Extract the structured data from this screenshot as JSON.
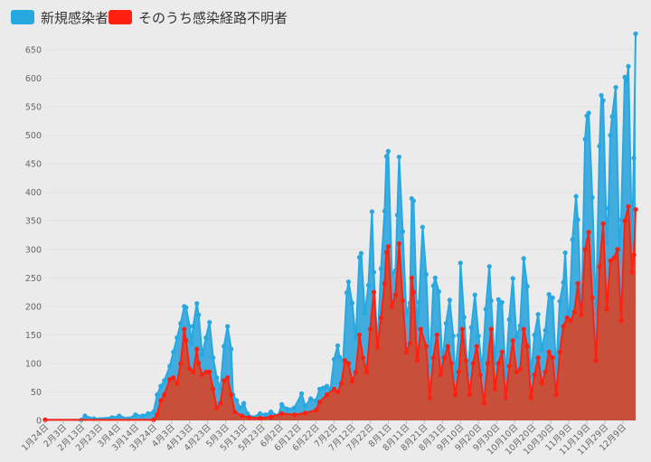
{
  "colors": {
    "series_total": "#27a8e0",
    "series_total_fill": "#3aa9dd",
    "series_unknown": "#ff2010",
    "series_unknown_fill": "#c8503a",
    "background": "#ebebeb"
  },
  "chart_data": {
    "type": "area",
    "title": "",
    "xlabel": "",
    "ylabel": "",
    "ylim": [
      0,
      650
    ],
    "yticks": [
      0,
      50,
      100,
      150,
      200,
      250,
      300,
      350,
      400,
      450,
      500,
      550,
      600,
      650
    ],
    "grid": true,
    "legend_position": "top-left",
    "x_start": "2020-01-24",
    "x_end": "2020-12-16",
    "x_tick_labels": [
      "1月24日",
      "2月3日",
      "2月13日",
      "2月23日",
      "3月4日",
      "3月14日",
      "3月24日",
      "4月3日",
      "4月13日",
      "4月23日",
      "5月3日",
      "5月13日",
      "5月23日",
      "6月2日",
      "6月12日",
      "6月22日",
      "7月2日",
      "7月12日",
      "7月22日",
      "8月1日",
      "8月11日",
      "8月21日",
      "8月31日",
      "9月10日",
      "9月20日",
      "9月30日",
      "10月10日",
      "10月20日",
      "10月30日",
      "11月9日",
      "11月19日",
      "11月29日",
      "12月9日"
    ],
    "series": [
      {
        "name": "新規感染者",
        "points": [
          [
            "2020-01-24",
            1
          ],
          [
            "2020-02-13",
            1
          ],
          [
            "2020-02-15",
            8
          ],
          [
            "2020-02-20",
            3
          ],
          [
            "2020-03-01",
            5
          ],
          [
            "2020-03-05",
            8
          ],
          [
            "2020-03-10",
            3
          ],
          [
            "2020-03-14",
            10
          ],
          [
            "2020-03-18",
            8
          ],
          [
            "2020-03-21",
            12
          ],
          [
            "2020-03-24",
            15
          ],
          [
            "2020-03-26",
            45
          ],
          [
            "2020-03-28",
            60
          ],
          [
            "2020-03-30",
            70
          ],
          [
            "2020-04-02",
            95
          ],
          [
            "2020-04-04",
            120
          ],
          [
            "2020-04-06",
            145
          ],
          [
            "2020-04-08",
            170
          ],
          [
            "2020-04-10",
            200
          ],
          [
            "2020-04-11",
            198
          ],
          [
            "2020-04-13",
            165
          ],
          [
            "2020-04-14",
            135
          ],
          [
            "2020-04-15",
            165
          ],
          [
            "2020-04-17",
            205
          ],
          [
            "2020-04-18",
            185
          ],
          [
            "2020-04-20",
            115
          ],
          [
            "2020-04-22",
            145
          ],
          [
            "2020-04-24",
            172
          ],
          [
            "2020-04-26",
            110
          ],
          [
            "2020-04-28",
            75
          ],
          [
            "2020-04-30",
            55
          ],
          [
            "2020-05-02",
            130
          ],
          [
            "2020-05-04",
            165
          ],
          [
            "2020-05-06",
            125
          ],
          [
            "2020-05-07",
            45
          ],
          [
            "2020-05-09",
            35
          ],
          [
            "2020-05-11",
            22
          ],
          [
            "2020-05-13",
            30
          ],
          [
            "2020-05-15",
            12
          ],
          [
            "2020-05-18",
            5
          ],
          [
            "2020-05-22",
            12
          ],
          [
            "2020-05-25",
            10
          ],
          [
            "2020-05-28",
            15
          ],
          [
            "2020-06-01",
            8
          ],
          [
            "2020-06-03",
            28
          ],
          [
            "2020-06-06",
            20
          ],
          [
            "2020-06-10",
            22
          ],
          [
            "2020-06-14",
            47
          ],
          [
            "2020-06-16",
            25
          ],
          [
            "2020-06-19",
            38
          ],
          [
            "2020-06-22",
            35
          ],
          [
            "2020-06-24",
            55
          ],
          [
            "2020-06-26",
            57
          ],
          [
            "2020-06-28",
            60
          ],
          [
            "2020-06-30",
            55
          ],
          [
            "2020-07-02",
            107
          ],
          [
            "2020-07-04",
            131
          ],
          [
            "2020-07-05",
            111
          ],
          [
            "2020-07-07",
            105
          ],
          [
            "2020-07-09",
            224
          ],
          [
            "2020-07-10",
            243
          ],
          [
            "2020-07-12",
            206
          ],
          [
            "2020-07-14",
            143
          ],
          [
            "2020-07-16",
            286
          ],
          [
            "2020-07-17",
            293
          ],
          [
            "2020-07-19",
            188
          ],
          [
            "2020-07-21",
            237
          ],
          [
            "2020-07-23",
            366
          ],
          [
            "2020-07-24",
            260
          ],
          [
            "2020-07-26",
            131
          ],
          [
            "2020-07-28",
            266
          ],
          [
            "2020-07-30",
            367
          ],
          [
            "2020-07-31",
            463
          ],
          [
            "2020-08-01",
            472
          ],
          [
            "2020-08-03",
            258
          ],
          [
            "2020-08-05",
            263
          ],
          [
            "2020-08-06",
            360
          ],
          [
            "2020-08-07",
            462
          ],
          [
            "2020-08-09",
            331
          ],
          [
            "2020-08-11",
            188
          ],
          [
            "2020-08-13",
            206
          ],
          [
            "2020-08-14",
            389
          ],
          [
            "2020-08-15",
            385
          ],
          [
            "2020-08-17",
            161
          ],
          [
            "2020-08-18",
            207
          ],
          [
            "2020-08-20",
            339
          ],
          [
            "2020-08-22",
            256
          ],
          [
            "2020-08-24",
            95
          ],
          [
            "2020-08-26",
            236
          ],
          [
            "2020-08-27",
            250
          ],
          [
            "2020-08-29",
            226
          ],
          [
            "2020-08-31",
            100
          ],
          [
            "2020-09-02",
            170
          ],
          [
            "2020-09-04",
            211
          ],
          [
            "2020-09-06",
            148
          ],
          [
            "2020-09-07",
            77
          ],
          [
            "2020-09-09",
            149
          ],
          [
            "2020-09-10",
            276
          ],
          [
            "2020-09-12",
            181
          ],
          [
            "2020-09-14",
            80
          ],
          [
            "2020-09-16",
            163
          ],
          [
            "2020-09-18",
            220
          ],
          [
            "2020-09-20",
            148
          ],
          [
            "2020-09-22",
            88
          ],
          [
            "2020-09-24",
            195
          ],
          [
            "2020-09-26",
            270
          ],
          [
            "2020-09-27",
            210
          ],
          [
            "2020-09-29",
            100
          ],
          [
            "2020-10-01",
            212
          ],
          [
            "2020-10-03",
            207
          ],
          [
            "2020-10-05",
            78
          ],
          [
            "2020-10-07",
            177
          ],
          [
            "2020-10-09",
            249
          ],
          [
            "2020-10-11",
            146
          ],
          [
            "2020-10-13",
            166
          ],
          [
            "2020-10-15",
            284
          ],
          [
            "2020-10-17",
            235
          ],
          [
            "2020-10-19",
            78
          ],
          [
            "2020-10-21",
            150
          ],
          [
            "2020-10-23",
            186
          ],
          [
            "2020-10-25",
            124
          ],
          [
            "2020-10-27",
            158
          ],
          [
            "2020-10-29",
            221
          ],
          [
            "2020-10-31",
            215
          ],
          [
            "2020-11-02",
            87
          ],
          [
            "2020-11-04",
            209
          ],
          [
            "2020-11-06",
            242
          ],
          [
            "2020-11-07",
            294
          ],
          [
            "2020-11-09",
            157
          ],
          [
            "2020-11-11",
            317
          ],
          [
            "2020-11-13",
            393
          ],
          [
            "2020-11-14",
            352
          ],
          [
            "2020-11-16",
            180
          ],
          [
            "2020-11-18",
            493
          ],
          [
            "2020-11-19",
            534
          ],
          [
            "2020-11-20",
            539
          ],
          [
            "2020-11-22",
            391
          ],
          [
            "2020-11-24",
            186
          ],
          [
            "2020-11-26",
            481
          ],
          [
            "2020-11-27",
            570
          ],
          [
            "2020-11-28",
            561
          ],
          [
            "2020-11-30",
            311
          ],
          [
            "2020-12-01",
            372
          ],
          [
            "2020-12-02",
            500
          ],
          [
            "2020-12-03",
            533
          ],
          [
            "2020-12-05",
            584
          ],
          [
            "2020-12-07",
            299
          ],
          [
            "2020-12-08",
            352
          ],
          [
            "2020-12-10",
            602
          ],
          [
            "2020-12-11",
            595
          ],
          [
            "2020-12-12",
            621
          ],
          [
            "2020-12-14",
            305
          ],
          [
            "2020-12-15",
            460
          ],
          [
            "2020-12-16",
            678
          ]
        ]
      },
      {
        "name": "そのうち感染経路不明者",
        "points": [
          [
            "2020-01-24",
            1
          ],
          [
            "2020-03-24",
            1
          ],
          [
            "2020-03-26",
            10
          ],
          [
            "2020-03-28",
            35
          ],
          [
            "2020-03-30",
            45
          ],
          [
            "2020-04-02",
            72
          ],
          [
            "2020-04-04",
            75
          ],
          [
            "2020-04-06",
            65
          ],
          [
            "2020-04-08",
            100
          ],
          [
            "2020-04-10",
            160
          ],
          [
            "2020-04-11",
            140
          ],
          [
            "2020-04-13",
            90
          ],
          [
            "2020-04-15",
            85
          ],
          [
            "2020-04-17",
            125
          ],
          [
            "2020-04-18",
            100
          ],
          [
            "2020-04-20",
            80
          ],
          [
            "2020-04-22",
            85
          ],
          [
            "2020-04-24",
            85
          ],
          [
            "2020-04-26",
            55
          ],
          [
            "2020-04-28",
            22
          ],
          [
            "2020-04-30",
            30
          ],
          [
            "2020-05-02",
            70
          ],
          [
            "2020-05-04",
            75
          ],
          [
            "2020-05-06",
            45
          ],
          [
            "2020-05-08",
            15
          ],
          [
            "2020-05-12",
            8
          ],
          [
            "2020-05-16",
            5
          ],
          [
            "2020-05-22",
            4
          ],
          [
            "2020-05-28",
            6
          ],
          [
            "2020-06-03",
            12
          ],
          [
            "2020-06-10",
            10
          ],
          [
            "2020-06-16",
            13
          ],
          [
            "2020-06-22",
            18
          ],
          [
            "2020-06-24",
            32
          ],
          [
            "2020-06-28",
            45
          ],
          [
            "2020-07-02",
            55
          ],
          [
            "2020-07-04",
            50
          ],
          [
            "2020-07-06",
            65
          ],
          [
            "2020-07-08",
            105
          ],
          [
            "2020-07-10",
            100
          ],
          [
            "2020-07-12",
            68
          ],
          [
            "2020-07-14",
            85
          ],
          [
            "2020-07-16",
            150
          ],
          [
            "2020-07-18",
            110
          ],
          [
            "2020-07-20",
            85
          ],
          [
            "2020-07-22",
            160
          ],
          [
            "2020-07-24",
            225
          ],
          [
            "2020-07-26",
            128
          ],
          [
            "2020-07-28",
            180
          ],
          [
            "2020-07-30",
            240
          ],
          [
            "2020-07-31",
            295
          ],
          [
            "2020-08-01",
            305
          ],
          [
            "2020-08-03",
            200
          ],
          [
            "2020-08-05",
            220
          ],
          [
            "2020-08-07",
            310
          ],
          [
            "2020-08-09",
            210
          ],
          [
            "2020-08-11",
            120
          ],
          [
            "2020-08-13",
            135
          ],
          [
            "2020-08-14",
            250
          ],
          [
            "2020-08-15",
            225
          ],
          [
            "2020-08-17",
            105
          ],
          [
            "2020-08-19",
            160
          ],
          [
            "2020-08-22",
            130
          ],
          [
            "2020-08-24",
            40
          ],
          [
            "2020-08-26",
            110
          ],
          [
            "2020-08-28",
            150
          ],
          [
            "2020-08-30",
            80
          ],
          [
            "2020-09-01",
            110
          ],
          [
            "2020-09-03",
            130
          ],
          [
            "2020-09-05",
            100
          ],
          [
            "2020-09-07",
            45
          ],
          [
            "2020-09-09",
            85
          ],
          [
            "2020-09-11",
            160
          ],
          [
            "2020-09-13",
            105
          ],
          [
            "2020-09-15",
            45
          ],
          [
            "2020-09-17",
            100
          ],
          [
            "2020-09-19",
            130
          ],
          [
            "2020-09-21",
            80
          ],
          [
            "2020-09-23",
            30
          ],
          [
            "2020-09-25",
            100
          ],
          [
            "2020-09-27",
            160
          ],
          [
            "2020-09-29",
            55
          ],
          [
            "2020-10-01",
            100
          ],
          [
            "2020-10-03",
            120
          ],
          [
            "2020-10-05",
            40
          ],
          [
            "2020-10-07",
            95
          ],
          [
            "2020-10-09",
            140
          ],
          [
            "2020-10-11",
            85
          ],
          [
            "2020-10-13",
            90
          ],
          [
            "2020-10-15",
            160
          ],
          [
            "2020-10-17",
            130
          ],
          [
            "2020-10-19",
            40
          ],
          [
            "2020-10-21",
            80
          ],
          [
            "2020-10-23",
            110
          ],
          [
            "2020-10-25",
            65
          ],
          [
            "2020-10-27",
            85
          ],
          [
            "2020-10-29",
            120
          ],
          [
            "2020-10-31",
            110
          ],
          [
            "2020-11-02",
            45
          ],
          [
            "2020-11-04",
            120
          ],
          [
            "2020-11-06",
            165
          ],
          [
            "2020-11-08",
            180
          ],
          [
            "2020-11-10",
            175
          ],
          [
            "2020-11-12",
            190
          ],
          [
            "2020-11-14",
            240
          ],
          [
            "2020-11-16",
            185
          ],
          [
            "2020-11-18",
            300
          ],
          [
            "2020-11-20",
            330
          ],
          [
            "2020-11-22",
            215
          ],
          [
            "2020-11-24",
            105
          ],
          [
            "2020-11-26",
            270
          ],
          [
            "2020-11-28",
            345
          ],
          [
            "2020-11-30",
            195
          ],
          [
            "2020-12-02",
            280
          ],
          [
            "2020-12-04",
            285
          ],
          [
            "2020-12-06",
            300
          ],
          [
            "2020-12-08",
            175
          ],
          [
            "2020-12-10",
            350
          ],
          [
            "2020-12-12",
            375
          ],
          [
            "2020-12-14",
            260
          ],
          [
            "2020-12-15",
            290
          ],
          [
            "2020-12-16",
            370
          ]
        ]
      }
    ]
  }
}
